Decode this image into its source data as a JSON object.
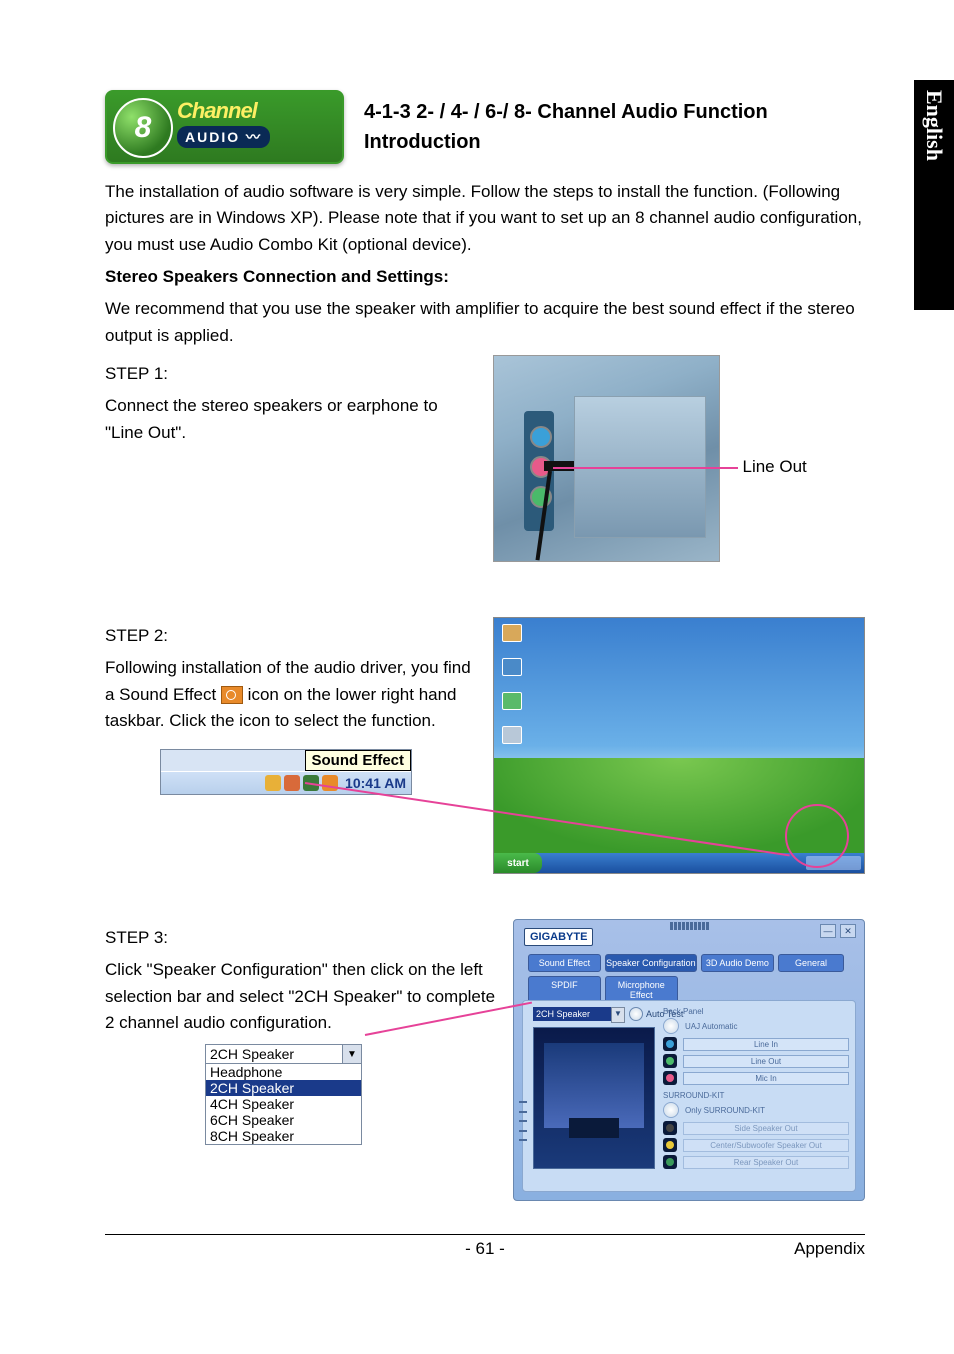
{
  "language_tab": "English",
  "logo": {
    "digit": "8",
    "line1": "Channel",
    "line2": "AUDIO 〰"
  },
  "heading": "4-1-3   2- / 4- / 6-/ 8-  Channel Audio Function Introduction",
  "intro": "The installation of audio software is very simple. Follow the steps to install the function. (Following pictures are in Windows XP). Please note that if you want to set up an 8 channel audio configuration, you must use Audio Combo Kit (optional device).",
  "subheading": "Stereo Speakers Connection and Settings:",
  "sub_intro": "We recommend that you use the speaker with amplifier to acquire the best sound effect if the stereo output is applied.",
  "step1": {
    "label": "STEP 1:",
    "text": "Connect the stereo speakers or earphone to \"Line Out\".",
    "callout": "Line Out"
  },
  "step2": {
    "label": "STEP 2:",
    "text_a": "Following installation of the audio driver, you find a Sound Effect ",
    "text_b": " icon on the lower right hand taskbar. Click the icon to select the function.",
    "tooltip": "Sound Effect",
    "tray_time": "10:41 AM",
    "tray_icon_colors": [
      "#e8b038",
      "#d86a3a",
      "#3a7a3a",
      "#e88a2a"
    ],
    "xp_start": "start"
  },
  "step3": {
    "label": "STEP 3:",
    "text": "Click \"Speaker Configuration\" then click on the left selection bar and select \"2CH Speaker\" to complete 2 channel audio configuration.",
    "dropdown": {
      "selected": "2CH Speaker",
      "options": [
        "Headphone",
        "2CH Speaker",
        "4CH Speaker",
        "6CH Speaker",
        "8CH Speaker"
      ],
      "highlight_index": 1
    },
    "panel": {
      "brand": "GIGABYTE",
      "tabs_row1": [
        "Sound Effect",
        "Speaker Configuration",
        "3D Audio Demo",
        "General"
      ],
      "tabs_row2": [
        "SPDIF",
        "Microphone Effect"
      ],
      "active_tab_index": 1,
      "speaker_select": "2CH Speaker",
      "auto_test": "Auto Test",
      "back_panel_label": "Back Panel",
      "uaj_label": "UAJ Automatic",
      "back_panel_jacks": [
        {
          "name": "Line In",
          "color": "#3aa0d8"
        },
        {
          "name": "Line Out",
          "color": "#4aba6a"
        },
        {
          "name": "Mic In",
          "color": "#e85a8a"
        }
      ],
      "surround_label": "SURROUND-KIT",
      "surround_sub": "Only SURROUND-KIT",
      "surround_jacks": [
        {
          "name": "Side Speaker Out",
          "color": "#444"
        },
        {
          "name": "Center/Subwoofer Speaker Out",
          "color": "#e8c838"
        },
        {
          "name": "Rear Speaker Out",
          "color": "#3a9a5a"
        }
      ]
    }
  },
  "footer": {
    "page": "- 61 -",
    "section": "Appendix"
  }
}
